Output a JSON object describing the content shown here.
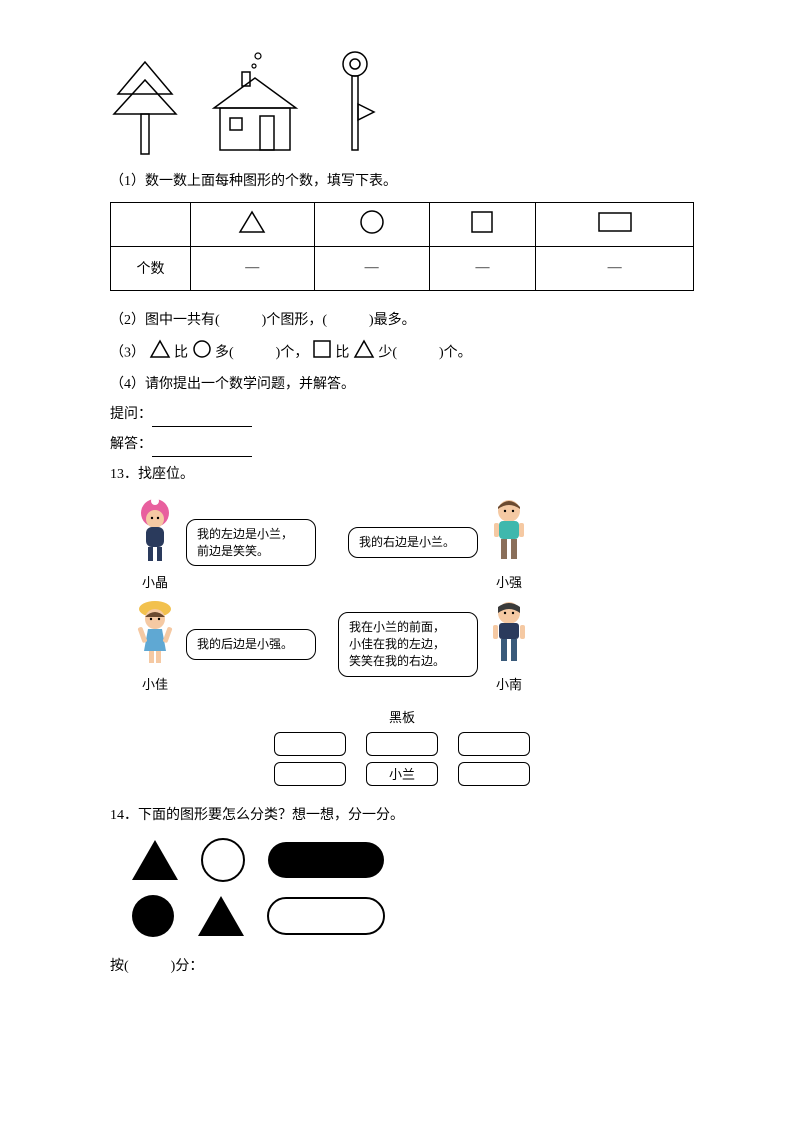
{
  "q1": {
    "instruction": "（1）数一数上面每种图形的个数，填写下表。",
    "row_label": "个数",
    "blank": "—"
  },
  "q2": "（2）图中一共有(　　　)个图形，(　　　)最多。",
  "q3_a": "（3）",
  "q3_b": "比",
  "q3_c": "多(　　　)个，",
  "q3_d": "比",
  "q3_e": "少(　　　)个。",
  "q4": "（4）请你提出一个数学问题，并解答。",
  "q4_prompt": "提问：",
  "q4_answer": "解答：",
  "q13": {
    "title": "13．找座位。",
    "xiaojing": "小晶",
    "xiaojing_speech": "我的左边是小兰，\n前边是笑笑。",
    "xiaoqiang": "小强",
    "xiaoqiang_speech": "我的右边是小兰。",
    "xiaojia": "小佳",
    "xiaojia_speech": "我的后边是小强。",
    "xiaonan": "小南",
    "xiaonan_speech": "我在小兰的前面，\n小佳在我的左边，\n笑笑在我的右边。",
    "blackboard": "黑板",
    "xiaolan": "小兰"
  },
  "q14": {
    "title": "14．下面的图形要怎么分类？想一想，分一分。",
    "footer": "按(　　　)分："
  },
  "colors": {
    "black": "#000000",
    "white": "#ffffff",
    "pink": "#e85f9e",
    "teal": "#3fb8ad",
    "navy": "#2a3a5c",
    "skin": "#f5c9a3",
    "yellow": "#f2c14e",
    "red": "#d94b4b",
    "brown": "#6b4a30"
  }
}
